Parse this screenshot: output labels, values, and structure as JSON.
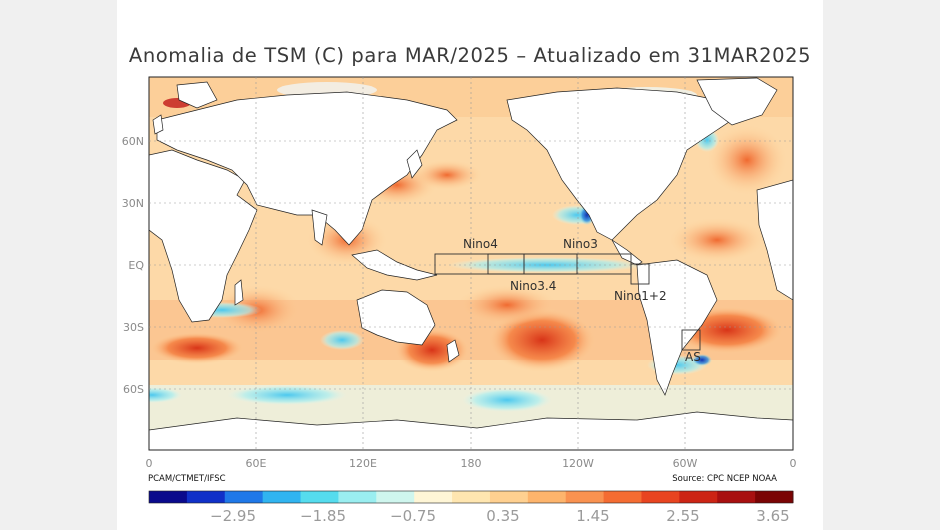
{
  "title": "Anomalia de TSM (C) para MAR/2025 – Atualizado em 31MAR2025",
  "footer": {
    "left": "PCAM/CTMET/IFSC",
    "right": "Source: CPC NCEP NOAA"
  },
  "map": {
    "projection": "equirectangular, longitude 0–360 centered on Pacific",
    "latitude_labels": [
      "60N",
      "30N",
      "EQ",
      "30S",
      "60S"
    ],
    "longitude_labels": [
      "0",
      "60E",
      "120E",
      "180",
      "120W",
      "60W",
      "0"
    ],
    "regions": [
      {
        "name": "Nino4",
        "lon_range": "160E–150W",
        "lat_range": "5S–5N"
      },
      {
        "name": "Nino3.4",
        "lon_range": "170W–120W",
        "lat_range": "5S–5N"
      },
      {
        "name": "Nino3",
        "lon_range": "150W–90W",
        "lat_range": "5S–5N"
      },
      {
        "name": "Nino1+2",
        "lon_range": "90W–80W",
        "lat_range": "10S–0"
      },
      {
        "name": "AS",
        "lon_range": "60W–50W",
        "lat_range": "40S–30S"
      }
    ]
  },
  "colorbar": {
    "labels": [
      "−2.95",
      "−1.85",
      "−0.75",
      "0.35",
      "1.45",
      "2.55",
      "3.65"
    ],
    "colors": [
      "#0a0a8c",
      "#1030c8",
      "#1f78e8",
      "#30b4f0",
      "#55dcee",
      "#9aeef0",
      "#cff6ee",
      "#fff6d6",
      "#ffe6b0",
      "#ffd090",
      "#fdb46c",
      "#f99250",
      "#f46c32",
      "#e84420",
      "#cc2414",
      "#a81010",
      "#7a0404"
    ]
  }
}
